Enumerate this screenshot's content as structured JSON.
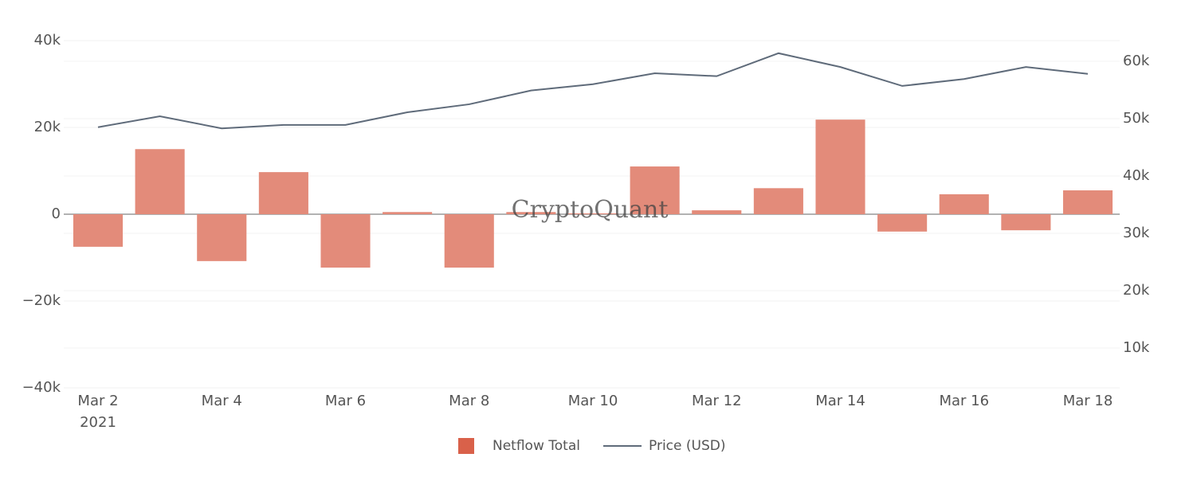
{
  "chart_data": {
    "type": "bar",
    "categories": [
      "Mar 2",
      null,
      "Mar 4",
      null,
      "Mar 6",
      null,
      "Mar 8",
      null,
      "Mar 10",
      null,
      "Mar 12",
      null,
      "Mar 14",
      null,
      "Mar 16",
      null,
      "Mar 18"
    ],
    "x_year_label": "2021",
    "series": [
      {
        "name": "Netflow Total",
        "type": "bar",
        "color": "#e38b7a",
        "legend_color": "#d9614a",
        "values": [
          -7500,
          15000,
          -10800,
          9700,
          -12300,
          500,
          -12300,
          500,
          200,
          11000,
          900,
          6000,
          21800,
          -4000,
          4600,
          -3700,
          5500
        ]
      },
      {
        "name": "Price (USD)",
        "type": "line",
        "axis": "y2",
        "color": "#5f6b7a",
        "values": [
          48500,
          50400,
          48300,
          48900,
          48900,
          51100,
          52500,
          54900,
          56000,
          57900,
          57400,
          61400,
          59000,
          55700,
          56900,
          59000,
          57800
        ]
      }
    ],
    "ylim": [
      -40000,
      40000
    ],
    "yticks": [
      {
        "value": -40000,
        "label": "−40k"
      },
      {
        "value": -20000,
        "label": "−20k"
      },
      0,
      {
        "value": 20000,
        "label": "20k"
      },
      {
        "value": 40000,
        "label": "40k"
      }
    ],
    "y2lim": [
      3060,
      63600
    ],
    "y2ticks": [
      {
        "value": 10000,
        "label": "10k"
      },
      {
        "value": 20000,
        "label": "20k"
      },
      {
        "value": 30000,
        "label": "30k"
      },
      {
        "value": 40000,
        "label": "40k"
      },
      {
        "value": 50000,
        "label": "50k"
      },
      {
        "value": 60000,
        "label": "60k"
      }
    ],
    "grid": true,
    "watermark": "CryptoQuant"
  }
}
